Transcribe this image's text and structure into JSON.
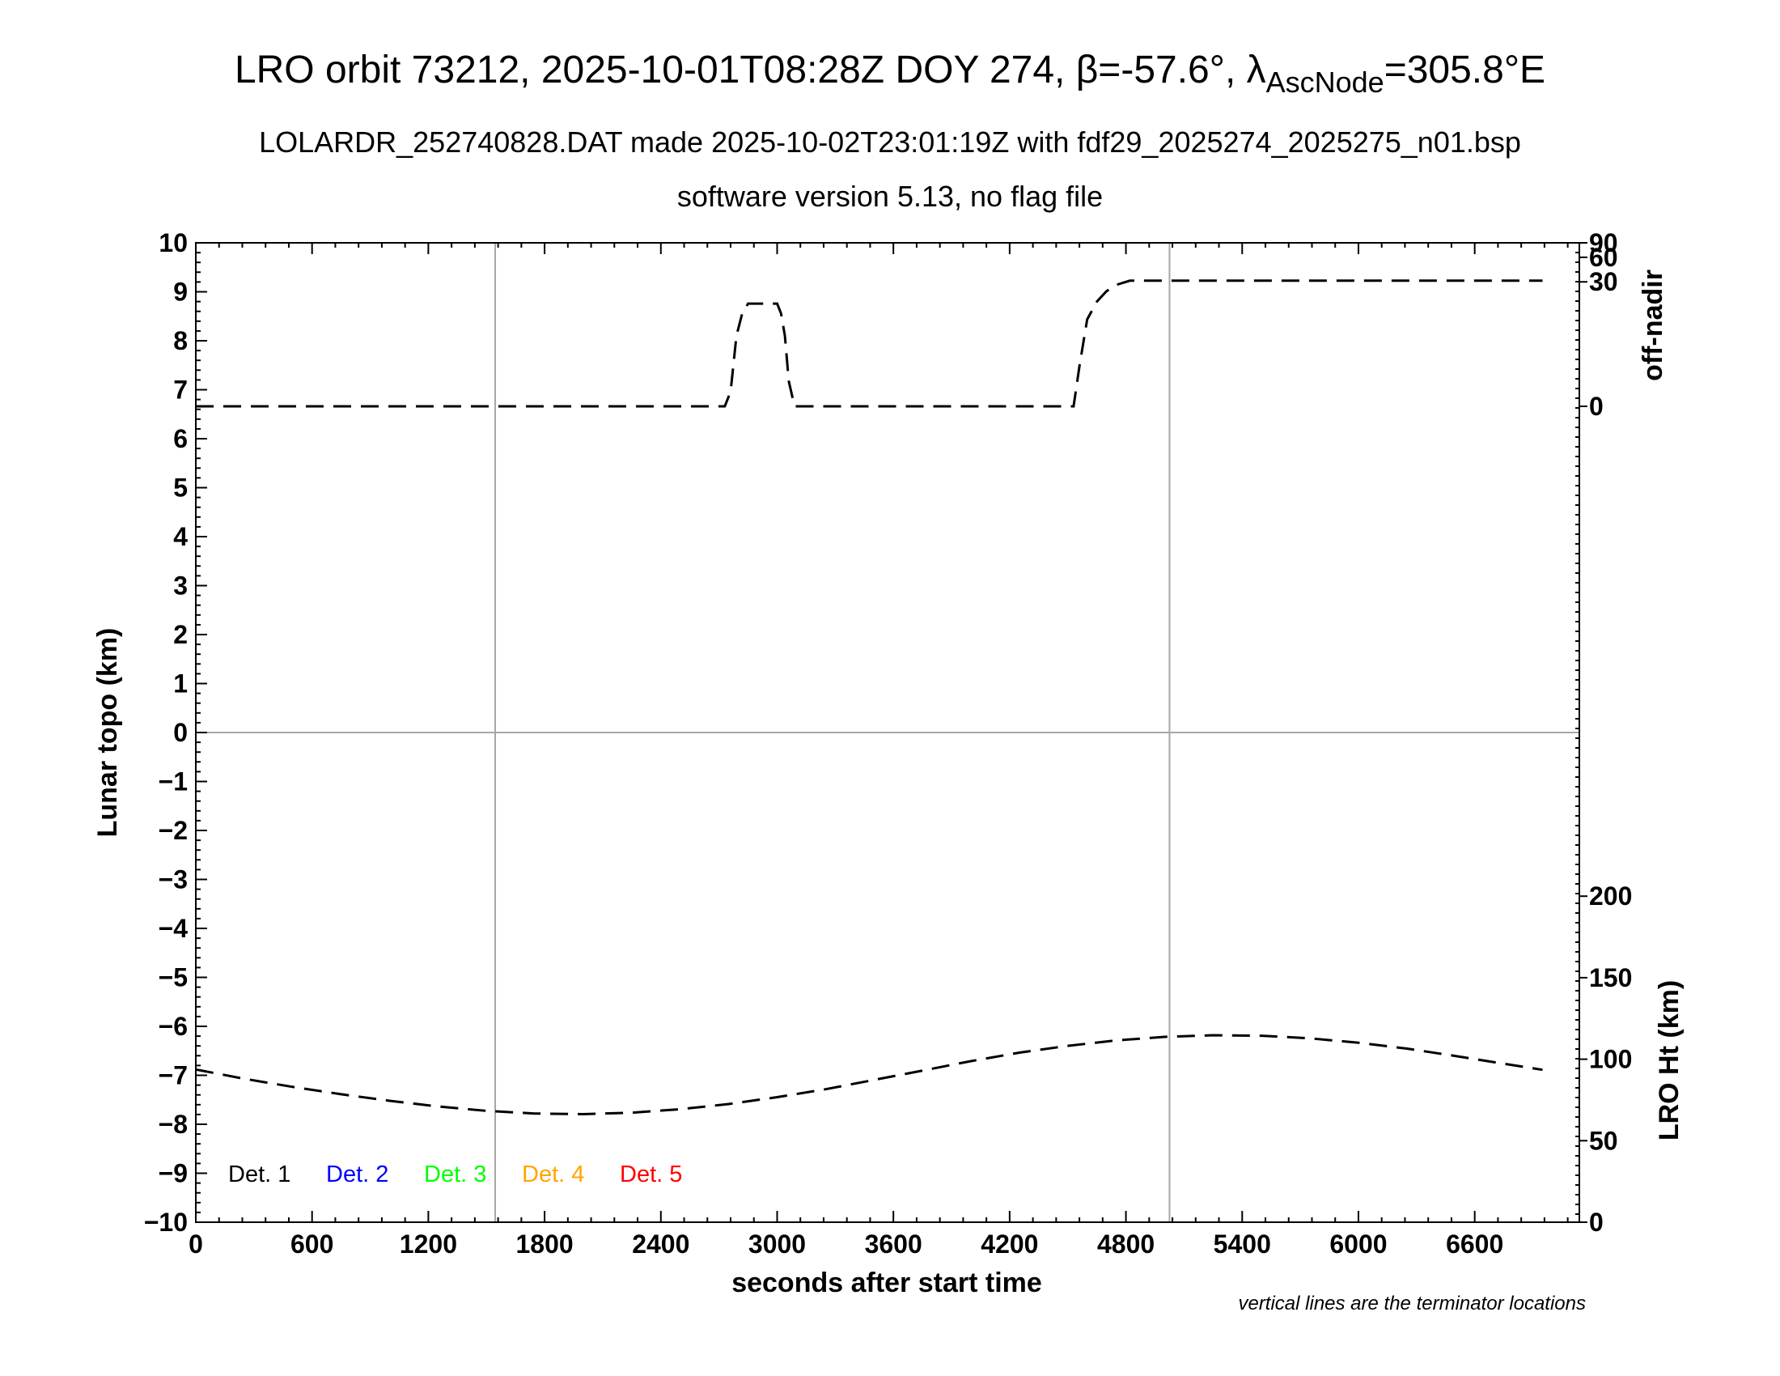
{
  "title_main": "LRO orbit 73212, 2025-10-01T08:28Z DOY 274, β=-57.6°, λ",
  "title_sub": "AscNode",
  "title_tail": "=305.8°E",
  "subtitle1": "LOLARDR_252740828.DAT made 2025-10-02T23:01:19Z with fdf29_2025274_2025275_n01.bsp",
  "subtitle2": "software version 5.13, no flag file",
  "footnote": "vertical lines are the terminator locations",
  "chart_data": {
    "type": "line",
    "xlabel": "seconds after start time",
    "ylabel": "Lunar topo (km)",
    "ylabel_right_top": "off-nadir",
    "ylabel_right_bottom": "LRO Ht (km)",
    "xlim": [
      0,
      7140
    ],
    "ylim": [
      -10,
      10
    ],
    "x_ticks": [
      "0",
      "600",
      "1200",
      "1800",
      "2400",
      "3000",
      "3600",
      "4200",
      "4800",
      "5400",
      "6000",
      "6600"
    ],
    "y_ticks": [
      "10",
      "9",
      "8",
      "7",
      "6",
      "5",
      "4",
      "3",
      "2",
      "1",
      "0",
      "−1",
      "−2",
      "−3",
      "−4",
      "−5",
      "−6",
      "−7",
      "−8",
      "−9",
      "−10"
    ],
    "off_nadir_ticks": [
      "90",
      "60",
      "30",
      "0"
    ],
    "off_nadir_scale": "log",
    "lro_ht_ticks": [
      "200",
      "150",
      "100",
      "50",
      "0"
    ],
    "lro_ht_range": [
      0,
      300
    ],
    "terminator_x": [
      1545,
      5025
    ],
    "grid": false,
    "zero_line": true,
    "legend": [
      {
        "label": "Det. 1",
        "color": "#000000"
      },
      {
        "label": "Det. 2",
        "color": "#0000ff"
      },
      {
        "label": "Det. 3",
        "color": "#00ff00"
      },
      {
        "label": "Det. 4",
        "color": "#ffa500"
      },
      {
        "label": "Det. 5",
        "color": "#ff0000"
      }
    ],
    "series": [
      {
        "color": "#000000",
        "style": "dashed",
        "axis": "off-nadir",
        "x": [
          0,
          2730,
          2760,
          2790,
          2820,
          2850,
          3000,
          3020,
          3040,
          3060,
          3090,
          4530,
          4560,
          4600,
          4650,
          4700,
          4760,
          4820,
          6950
        ],
        "y": [
          0,
          0,
          0.5,
          6,
          12,
          16,
          16,
          12,
          6,
          1,
          0,
          0,
          2,
          10,
          17,
          23,
          28,
          31,
          31
        ]
      },
      {
        "color": "#000000",
        "style": "dashed",
        "axis": "LRO Ht",
        "x": [
          0,
          250,
          500,
          750,
          1000,
          1250,
          1500,
          1750,
          2000,
          2250,
          2500,
          2750,
          3000,
          3250,
          3500,
          3750,
          4000,
          4250,
          4500,
          4750,
          5000,
          5250,
          5500,
          5750,
          6000,
          6250,
          6500,
          6750,
          6950
        ],
        "y": [
          93.7,
          88,
          83,
          78.5,
          74.5,
          71,
          68.3,
          66.7,
          66.3,
          67.2,
          69.3,
          72.5,
          76.7,
          81.6,
          87.3,
          93,
          98.8,
          104,
          108.2,
          111.5,
          113.7,
          114.7,
          114.4,
          112.8,
          110.1,
          106.5,
          102,
          97.2,
          93.5
        ]
      }
    ]
  }
}
